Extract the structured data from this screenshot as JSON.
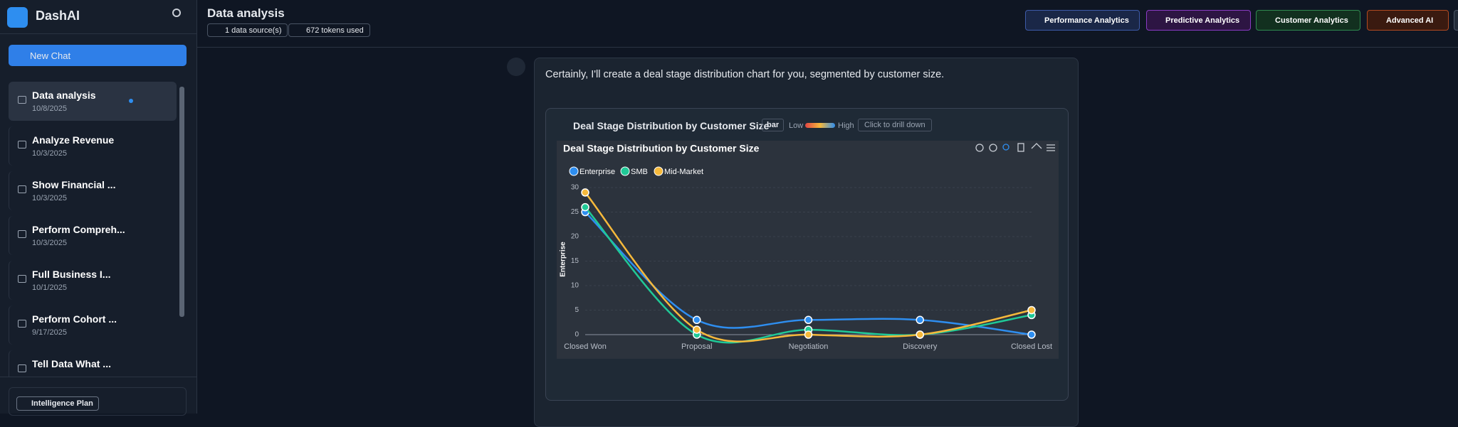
{
  "app": {
    "name": "DashAI",
    "new_chat": "New Chat",
    "plan": "Intelligence Plan"
  },
  "sidebar": {
    "chats": [
      {
        "title": "Data analysis",
        "date": "10/8/2025"
      },
      {
        "title": "Analyze Revenue",
        "date": "10/3/2025"
      },
      {
        "title": "Show Financial ...",
        "date": "10/3/2025"
      },
      {
        "title": "Perform Compreh...",
        "date": "10/3/2025"
      },
      {
        "title": "Full Business I...",
        "date": "10/1/2025"
      },
      {
        "title": "Perform Cohort ...",
        "date": "9/17/2025"
      },
      {
        "title": "Tell Data What ..."
      }
    ]
  },
  "header": {
    "title": "Data analysis",
    "badges": [
      "1 data source(s)",
      "672 tokens used"
    ],
    "menus": [
      "Performance Analytics",
      "Predictive Analytics",
      "Customer Analytics",
      "Advanced AI"
    ]
  },
  "message": {
    "text": "Certainly, I'll create a deal stage distribution chart for you, segmented by customer size."
  },
  "chart_card": {
    "title": "Deal Stage Distribution by Customer Size",
    "type_badge": "bar",
    "low": "Low",
    "high": "High",
    "drill": "Click to drill down"
  },
  "chart_data": {
    "type": "line",
    "title": "Deal Stage Distribution by Customer Size",
    "y_label": "Enterprise",
    "categories": [
      "Closed Won",
      "Proposal",
      "Negotiation",
      "Discovery",
      "Closed Lost"
    ],
    "series": [
      {
        "name": "Enterprise",
        "color": "#2e8ef0",
        "values": [
          25,
          3,
          3,
          3,
          0
        ]
      },
      {
        "name": "SMB",
        "color": "#20c997",
        "values": [
          26,
          0,
          1,
          0,
          4
        ]
      },
      {
        "name": "Mid-Market",
        "color": "#f6b93b",
        "values": [
          29,
          1,
          0,
          0,
          5
        ]
      }
    ],
    "ylim": [
      0,
      30
    ],
    "yticks": [
      0,
      5,
      10,
      15,
      20,
      25,
      30
    ],
    "grid": true
  }
}
